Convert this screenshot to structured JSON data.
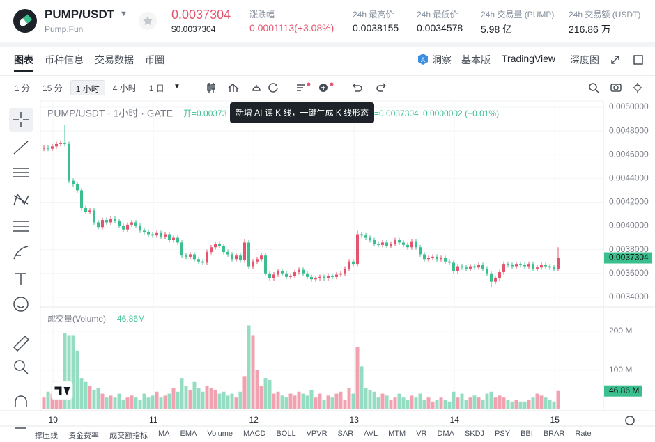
{
  "header": {
    "symbol": "PUMP/USDT",
    "source": "Pump.Fun",
    "price": "0.0037304",
    "price_usd": "$0.0037304",
    "stats": [
      {
        "label": "涨跌幅",
        "value": "0.0001113(+3.08%)"
      },
      {
        "label": "24h 最高价",
        "value": "0.0038155"
      },
      {
        "label": "24h 最低价",
        "value": "0.0034578"
      },
      {
        "label": "24h 交易量 (PUMP)",
        "value": "5.98 亿"
      },
      {
        "label": "24h 交易额 (USDT)",
        "value": "216.86 万"
      }
    ]
  },
  "tabs": [
    "图表",
    "币种信息",
    "交易数据",
    "币圈"
  ],
  "tabs_right": [
    "洞察",
    "基本版",
    "TradingView",
    "深度图"
  ],
  "intervals": [
    "1 分",
    "15 分",
    "1 小时",
    "4 小时",
    "1 日"
  ],
  "tooltip": "新增 AI 读 K 线，一键生成 K 线形态",
  "indicators": [
    "撑压线",
    "资金费率",
    "成交额指标",
    "MA",
    "EMA",
    "Volume",
    "MACD",
    "BOLL",
    "VPVR",
    "SAR",
    "AVL",
    "MTM",
    "VR",
    "DMA",
    "SKDJ",
    "PSY",
    "BBI",
    "BRAR",
    "Rate"
  ],
  "chart_data": {
    "type": "candlestick",
    "legend_title": "PUMP/USDT · 1小时 · GATE",
    "legend_open": "开=0.00373",
    "legend_close": "=0.0037304",
    "legend_change": "0.0000002 (+0.01%)",
    "up_color": "#e5546e",
    "down_color": "#3cbf8f",
    "grid": true,
    "last_price_label": "0.0037304",
    "x_labels": [
      "10",
      "11",
      "12",
      "13",
      "14",
      "15"
    ],
    "ylim": [
      0.003323,
      0.005053
    ],
    "yticks": [
      {
        "value": 0.005,
        "label": "0.0050000"
      },
      {
        "value": 0.0048,
        "label": "0.0048000"
      },
      {
        "value": 0.0046,
        "label": "0.0046000"
      },
      {
        "value": 0.0044,
        "label": "0.0044000"
      },
      {
        "value": 0.0042,
        "label": "0.0042000"
      },
      {
        "value": 0.004,
        "label": "0.0040000"
      },
      {
        "value": 0.0038,
        "label": "0.0038000"
      },
      {
        "value": 0.0036,
        "label": "0.0036000"
      },
      {
        "value": 0.0034,
        "label": "0.0034000"
      }
    ],
    "ohlc": [
      [
        0.00465,
        0.00468,
        0.00463,
        0.00466
      ],
      [
        0.00466,
        0.00468,
        0.00463,
        0.00465
      ],
      [
        0.00465,
        0.00469,
        0.00463,
        0.00467
      ],
      [
        0.00467,
        0.00471,
        0.00465,
        0.00469
      ],
      [
        0.00469,
        0.00472,
        0.00467,
        0.0047
      ],
      [
        0.0047,
        0.00485,
        0.00467,
        0.00469
      ],
      [
        0.00469,
        0.00471,
        0.00436,
        0.00438
      ],
      [
        0.00438,
        0.0044,
        0.00433,
        0.00435
      ],
      [
        0.00435,
        0.00437,
        0.00428,
        0.0043
      ],
      [
        0.0043,
        0.00432,
        0.00413,
        0.00415
      ],
      [
        0.00415,
        0.00417,
        0.0041,
        0.00412
      ],
      [
        0.00412,
        0.00415,
        0.0041,
        0.00413
      ],
      [
        0.00413,
        0.00415,
        0.00401,
        0.00403
      ],
      [
        0.00403,
        0.00405,
        0.00397,
        0.00399
      ],
      [
        0.00399,
        0.00407,
        0.00397,
        0.00405
      ],
      [
        0.00405,
        0.00407,
        0.00401,
        0.00403
      ],
      [
        0.00403,
        0.00408,
        0.00401,
        0.00406
      ],
      [
        0.00406,
        0.00408,
        0.00402,
        0.00404
      ],
      [
        0.00404,
        0.00406,
        0.00398,
        0.004
      ],
      [
        0.004,
        0.00402,
        0.00395,
        0.00397
      ],
      [
        0.00397,
        0.00403,
        0.00395,
        0.00401
      ],
      [
        0.00401,
        0.00405,
        0.00399,
        0.00403
      ],
      [
        0.00403,
        0.00405,
        0.00398,
        0.004
      ],
      [
        0.004,
        0.00402,
        0.00394,
        0.00396
      ],
      [
        0.00396,
        0.00398,
        0.00393,
        0.00395
      ],
      [
        0.00395,
        0.00397,
        0.00391,
        0.00393
      ],
      [
        0.00393,
        0.00395,
        0.0039,
        0.00392
      ],
      [
        0.00392,
        0.00396,
        0.0039,
        0.00394
      ],
      [
        0.00394,
        0.00396,
        0.00389,
        0.00391
      ],
      [
        0.00391,
        0.00395,
        0.00389,
        0.00393
      ],
      [
        0.00393,
        0.00395,
        0.00386,
        0.00388
      ],
      [
        0.00388,
        0.00392,
        0.00386,
        0.0039
      ],
      [
        0.0039,
        0.00392,
        0.00384,
        0.00386
      ],
      [
        0.00386,
        0.00388,
        0.00373,
        0.00375
      ],
      [
        0.00375,
        0.00377,
        0.00372,
        0.00374
      ],
      [
        0.00374,
        0.00378,
        0.00372,
        0.00376
      ],
      [
        0.00376,
        0.00378,
        0.0037,
        0.00372
      ],
      [
        0.00372,
        0.00374,
        0.00368,
        0.0037
      ],
      [
        0.0037,
        0.00372,
        0.00367,
        0.00369
      ],
      [
        0.00369,
        0.0038,
        0.00367,
        0.00378
      ],
      [
        0.00378,
        0.00384,
        0.00376,
        0.00382
      ],
      [
        0.00382,
        0.00387,
        0.0038,
        0.00385
      ],
      [
        0.00385,
        0.00387,
        0.00381,
        0.00383
      ],
      [
        0.00383,
        0.00385,
        0.00376,
        0.00378
      ],
      [
        0.00378,
        0.0038,
        0.00374,
        0.00376
      ],
      [
        0.00376,
        0.00378,
        0.0037,
        0.00372
      ],
      [
        0.00372,
        0.00377,
        0.0037,
        0.00375
      ],
      [
        0.00375,
        0.00377,
        0.00369,
        0.00371
      ],
      [
        0.00371,
        0.00389,
        0.00369,
        0.00386
      ],
      [
        0.00386,
        0.00388,
        0.00364,
        0.00366
      ],
      [
        0.00366,
        0.00372,
        0.00364,
        0.0037
      ],
      [
        0.0037,
        0.00374,
        0.00368,
        0.00372
      ],
      [
        0.00372,
        0.00377,
        0.0037,
        0.00375
      ],
      [
        0.00375,
        0.00377,
        0.00358,
        0.0036
      ],
      [
        0.0036,
        0.00362,
        0.00354,
        0.00356
      ],
      [
        0.00356,
        0.00361,
        0.00354,
        0.00359
      ],
      [
        0.00359,
        0.00364,
        0.00357,
        0.00362
      ],
      [
        0.00362,
        0.00364,
        0.00358,
        0.0036
      ],
      [
        0.0036,
        0.00362,
        0.00355,
        0.00357
      ],
      [
        0.00357,
        0.0036,
        0.00355,
        0.00358
      ],
      [
        0.00358,
        0.00363,
        0.00356,
        0.00361
      ],
      [
        0.00361,
        0.00365,
        0.00359,
        0.00363
      ],
      [
        0.00363,
        0.00365,
        0.00358,
        0.0036
      ],
      [
        0.0036,
        0.00362,
        0.00355,
        0.00357
      ],
      [
        0.00357,
        0.00359,
        0.00353,
        0.00355
      ],
      [
        0.00355,
        0.00358,
        0.00353,
        0.00356
      ],
      [
        0.00356,
        0.00359,
        0.00354,
        0.00357
      ],
      [
        0.00357,
        0.00359,
        0.00354,
        0.00356
      ],
      [
        0.00356,
        0.0036,
        0.00354,
        0.00358
      ],
      [
        0.00358,
        0.0036,
        0.00355,
        0.00357
      ],
      [
        0.00357,
        0.00361,
        0.00355,
        0.00359
      ],
      [
        0.00359,
        0.00362,
        0.00357,
        0.0036
      ],
      [
        0.0036,
        0.00366,
        0.00358,
        0.00364
      ],
      [
        0.00364,
        0.00372,
        0.00362,
        0.0037
      ],
      [
        0.0037,
        0.00372,
        0.00366,
        0.00368
      ],
      [
        0.00368,
        0.00396,
        0.00366,
        0.00393
      ],
      [
        0.00393,
        0.00395,
        0.0039,
        0.00392
      ],
      [
        0.00392,
        0.00394,
        0.00388,
        0.0039
      ],
      [
        0.0039,
        0.00392,
        0.00386,
        0.00388
      ],
      [
        0.00388,
        0.0039,
        0.00383,
        0.00385
      ],
      [
        0.00385,
        0.00387,
        0.00382,
        0.00384
      ],
      [
        0.00384,
        0.00388,
        0.00382,
        0.00386
      ],
      [
        0.00386,
        0.00388,
        0.00381,
        0.00383
      ],
      [
        0.00383,
        0.00387,
        0.00381,
        0.00385
      ],
      [
        0.00385,
        0.0039,
        0.00383,
        0.00388
      ],
      [
        0.00388,
        0.0039,
        0.00384,
        0.00386
      ],
      [
        0.00386,
        0.00388,
        0.00382,
        0.00384
      ],
      [
        0.00384,
        0.00386,
        0.0038,
        0.00382
      ],
      [
        0.00382,
        0.00389,
        0.0038,
        0.00387
      ],
      [
        0.00387,
        0.00389,
        0.0038,
        0.00382
      ],
      [
        0.00382,
        0.00384,
        0.00374,
        0.00376
      ],
      [
        0.00376,
        0.00378,
        0.0037,
        0.00372
      ],
      [
        0.00372,
        0.00375,
        0.0037,
        0.00373
      ],
      [
        0.00373,
        0.00376,
        0.00371,
        0.00374
      ],
      [
        0.00374,
        0.00376,
        0.0037,
        0.00372
      ],
      [
        0.00372,
        0.00375,
        0.0037,
        0.00373
      ],
      [
        0.00373,
        0.00375,
        0.00368,
        0.0037
      ],
      [
        0.0037,
        0.00372,
        0.00367,
        0.00369
      ],
      [
        0.00369,
        0.00371,
        0.0036,
        0.00362
      ],
      [
        0.00362,
        0.00368,
        0.0036,
        0.00366
      ],
      [
        0.00366,
        0.00368,
        0.00363,
        0.00365
      ],
      [
        0.00365,
        0.00367,
        0.00362,
        0.00364
      ],
      [
        0.00364,
        0.00368,
        0.00362,
        0.00366
      ],
      [
        0.00366,
        0.00368,
        0.00363,
        0.00365
      ],
      [
        0.00365,
        0.00369,
        0.00363,
        0.00367
      ],
      [
        0.00367,
        0.00369,
        0.00362,
        0.00364
      ],
      [
        0.00364,
        0.00366,
        0.00358,
        0.0036
      ],
      [
        0.0036,
        0.00362,
        0.00348,
        0.00353
      ],
      [
        0.00353,
        0.00358,
        0.00351,
        0.00356
      ],
      [
        0.00356,
        0.00363,
        0.00354,
        0.00361
      ],
      [
        0.00361,
        0.0037,
        0.00359,
        0.00368
      ],
      [
        0.00368,
        0.0037,
        0.00365,
        0.00367
      ],
      [
        0.00367,
        0.00369,
        0.00364,
        0.00366
      ],
      [
        0.00366,
        0.0037,
        0.00364,
        0.00368
      ],
      [
        0.00368,
        0.0037,
        0.00365,
        0.00367
      ],
      [
        0.00367,
        0.00369,
        0.00364,
        0.00366
      ],
      [
        0.00366,
        0.0037,
        0.00364,
        0.00368
      ],
      [
        0.00368,
        0.0037,
        0.00362,
        0.00364
      ],
      [
        0.00364,
        0.00367,
        0.00362,
        0.00365
      ],
      [
        0.00365,
        0.00369,
        0.00363,
        0.00367
      ],
      [
        0.00367,
        0.00369,
        0.00364,
        0.00366
      ],
      [
        0.00366,
        0.00368,
        0.00363,
        0.00365
      ],
      [
        0.00365,
        0.00367,
        0.00362,
        0.00364
      ],
      [
        0.00364,
        0.00382,
        0.00362,
        0.0037304
      ]
    ],
    "volume": {
      "title": "成交量(Volume)",
      "legend_value_label": "46.86M",
      "axis_value_label": "46.86 M",
      "ylim": [
        0,
        255
      ],
      "yticks": [
        {
          "value": 100,
          "label": "100 M"
        },
        {
          "value": 200,
          "label": "200 M"
        }
      ],
      "values": [
        30,
        45,
        40,
        55,
        35,
        195,
        190,
        190,
        150,
        80,
        70,
        60,
        50,
        55,
        40,
        30,
        35,
        30,
        40,
        25,
        30,
        35,
        30,
        25,
        40,
        30,
        35,
        45,
        30,
        35,
        40,
        55,
        45,
        80,
        60,
        50,
        70,
        55,
        45,
        60,
        55,
        50,
        40,
        45,
        35,
        40,
        30,
        45,
        85,
        215,
        190,
        100,
        60,
        80,
        75,
        40,
        45,
        35,
        30,
        40,
        35,
        45,
        40,
        35,
        50,
        30,
        40,
        25,
        35,
        30,
        40,
        45,
        25,
        55,
        40,
        160,
        110,
        55,
        50,
        45,
        30,
        40,
        35,
        25,
        30,
        40,
        30,
        25,
        35,
        30,
        40,
        25,
        30,
        20,
        25,
        30,
        25,
        20,
        45,
        30,
        40,
        25,
        30,
        35,
        30,
        25,
        40,
        45,
        30,
        35,
        30,
        25,
        20,
        25,
        20,
        20,
        25,
        30,
        40,
        35,
        30,
        25,
        20,
        46.86
      ]
    }
  }
}
